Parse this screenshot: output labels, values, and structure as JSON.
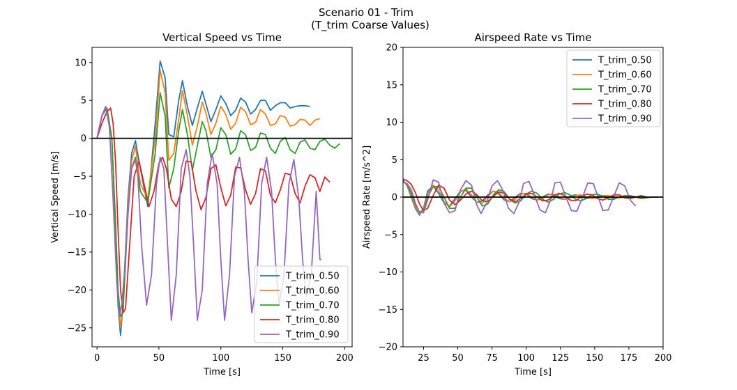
{
  "figure": {
    "suptitle_line1": "Scenario 01 - Trim",
    "suptitle_line2": "(T_trim Coarse Values)"
  },
  "colors": {
    "T_trim_0.50": "#1f77b4",
    "T_trim_0.60": "#ff7f0e",
    "T_trim_0.70": "#2ca02c",
    "T_trim_0.80": "#d62728",
    "T_trim_0.90": "#9467bd",
    "zero_line": "#000000"
  },
  "chart_data": [
    {
      "type": "line",
      "title": "Vertical Speed vs Time",
      "xlabel": "Time [s]",
      "ylabel": "Vertical Speed [m/s]",
      "xlim": [
        -4,
        206
      ],
      "ylim": [
        -27.5,
        12
      ],
      "xticks": [
        0,
        50,
        100,
        150,
        200
      ],
      "yticks": [
        10,
        5,
        0,
        -5,
        -10,
        -15,
        -20,
        -25
      ],
      "hline": 0,
      "legend_position": "lower-right",
      "series": [
        {
          "name": "T_trim_0.50",
          "x": [
            0,
            4,
            8,
            12,
            15,
            17,
            19,
            21,
            25,
            28,
            31,
            35,
            41,
            47,
            51,
            55,
            58,
            62,
            66,
            69,
            73,
            77,
            81,
            85,
            88,
            92,
            96,
            100,
            104,
            108,
            112,
            116,
            120,
            124,
            128,
            132,
            136,
            140,
            144,
            148,
            152,
            156,
            160,
            164,
            168,
            172
          ],
          "y": [
            0,
            3,
            4,
            0,
            -12,
            -22,
            -26,
            -22,
            -8,
            -2,
            -0.3,
            -4,
            -9,
            2,
            10.2,
            8,
            0.5,
            0.2,
            5,
            7.6,
            4.2,
            1.7,
            4,
            6.2,
            4.5,
            2.2,
            3.8,
            5.6,
            4.6,
            3,
            3.7,
            5.3,
            4.8,
            3.2,
            3.8,
            5,
            5,
            3.7,
            4.3,
            4.7,
            4.7,
            4,
            4.2,
            4.3,
            4.3,
            4.2
          ]
        },
        {
          "name": "T_trim_0.60",
          "x": [
            0,
            4,
            8,
            12,
            15,
            17,
            19,
            21,
            25,
            28,
            31,
            35,
            41,
            47,
            51,
            55,
            58,
            62,
            66,
            69,
            73,
            77,
            81,
            85,
            88,
            92,
            96,
            100,
            104,
            108,
            112,
            116,
            120,
            124,
            128,
            132,
            136,
            140,
            144,
            148,
            152,
            156,
            160,
            164,
            168,
            172,
            176,
            180
          ],
          "y": [
            0,
            3,
            4,
            0,
            -12,
            -21,
            -25,
            -22,
            -9,
            -3,
            -1,
            -6,
            -8,
            0,
            9,
            6,
            -2.9,
            -2,
            2.5,
            6.3,
            3,
            -0.9,
            1.6,
            4.8,
            3.3,
            0.5,
            2,
            4.2,
            3.2,
            1.2,
            2,
            4.1,
            3.5,
            1.8,
            2.1,
            3.8,
            3.2,
            1.7,
            1.9,
            3,
            2.8,
            1.6,
            1.8,
            2.5,
            2.4,
            1.7,
            2.4,
            2.6
          ]
        },
        {
          "name": "T_trim_0.70",
          "x": [
            0,
            4,
            8,
            12,
            15,
            17,
            19,
            21,
            25,
            28,
            31,
            35,
            41,
            47,
            51,
            55,
            58,
            62,
            66,
            69,
            73,
            77,
            81,
            85,
            88,
            92,
            96,
            100,
            104,
            108,
            112,
            116,
            120,
            124,
            128,
            132,
            136,
            140,
            144,
            148,
            152,
            156,
            160,
            164,
            168,
            172,
            176,
            180,
            184,
            188,
            192,
            196
          ],
          "y": [
            0,
            3,
            4,
            0,
            -11,
            -20,
            -23.5,
            -23,
            -10,
            -4,
            -2.5,
            -7,
            -8.5,
            -2,
            6,
            3,
            -6.5,
            -4,
            1,
            3.8,
            0.5,
            -4.2,
            -1,
            2.2,
            1,
            -2.5,
            -1.5,
            1.4,
            0.5,
            -2.1,
            -1.4,
            1,
            0.5,
            -1.6,
            -1.2,
            0.7,
            0.5,
            -1.3,
            -2,
            -0.4,
            0.1,
            -1.5,
            -2,
            -0.5,
            -0.2,
            -1.3,
            -1.5,
            -0.4,
            -0.1,
            -0.9,
            -1.3,
            -0.7
          ]
        },
        {
          "name": "T_trim_0.80",
          "x": [
            0,
            4,
            8,
            11,
            13,
            15,
            17,
            19,
            21,
            23,
            26,
            30,
            34,
            38,
            42,
            46,
            50,
            53,
            56,
            60,
            64,
            68,
            72,
            76,
            80,
            84,
            88,
            92,
            96,
            100,
            104,
            108,
            112,
            116,
            120,
            124,
            128,
            132,
            136,
            140,
            144,
            148,
            152,
            156,
            160,
            164,
            168,
            172,
            176,
            180,
            184,
            188
          ],
          "y": [
            0,
            2,
            3.5,
            4,
            2,
            -3,
            -12,
            -20,
            -23,
            -22.5,
            -15,
            -5,
            -3,
            -6,
            -9,
            -7,
            -3.3,
            -2.5,
            -4,
            -8,
            -9,
            -7,
            -3,
            -3.1,
            -7,
            -9.4,
            -7.8,
            -4,
            -3.5,
            -6.5,
            -8.9,
            -7.5,
            -3.8,
            -3.9,
            -6.8,
            -8.7,
            -7.3,
            -4,
            -4.3,
            -7.5,
            -8.5,
            -6.8,
            -4.6,
            -4.8,
            -7.3,
            -8.5,
            -6.3,
            -4.8,
            -5.2,
            -7,
            -5.1,
            -5.8
          ]
        },
        {
          "name": "T_trim_0.90",
          "x": [
            0,
            4,
            7,
            10,
            13,
            16,
            18,
            20,
            22,
            25,
            28,
            31,
            33,
            36,
            40,
            44,
            48,
            51,
            54,
            57,
            60,
            64,
            68,
            72,
            75,
            78,
            81,
            85,
            89,
            93,
            97,
            100,
            103,
            107,
            111,
            115,
            119,
            122,
            125,
            129,
            133,
            137,
            141,
            144,
            147,
            151,
            155,
            159,
            163,
            166,
            169,
            173,
            177,
            180,
            181
          ],
          "y": [
            0,
            3,
            4.2,
            1.5,
            -8,
            -19,
            -23.5,
            -22,
            -18,
            -10,
            -4,
            -2.8,
            -5,
            -14,
            -22,
            -18,
            -6,
            -2.5,
            -4,
            -14,
            -24,
            -18,
            -4,
            -1.5,
            -5,
            -14,
            -24,
            -20,
            -6,
            -2,
            -6,
            -16,
            -24,
            -18,
            -5,
            -2.5,
            -7,
            -16,
            -23,
            -19,
            -6,
            -2.5,
            -7,
            -16,
            -22,
            -18,
            -6,
            -2.8,
            -8,
            -16,
            -21,
            -18,
            -7,
            -16,
            -16
          ]
        }
      ]
    },
    {
      "type": "line",
      "title": "Airspeed Rate vs Time",
      "xlabel": "Time [s]",
      "ylabel": "Airspeed Rate [m/s^2]",
      "xlim": [
        10,
        200
      ],
      "ylim": [
        -20,
        20
      ],
      "xticks": [
        25,
        50,
        75,
        100,
        125,
        150,
        175,
        200
      ],
      "yticks": [
        20,
        15,
        10,
        5,
        0,
        -5,
        -10,
        -15,
        -20
      ],
      "hline": 0,
      "legend_position": "upper-right",
      "series": [
        {
          "name": "T_trim_0.50",
          "x": [
            10,
            13,
            16,
            19,
            22,
            25,
            28,
            32,
            36,
            40,
            44,
            48,
            52,
            56,
            60,
            64,
            68,
            72,
            76,
            80,
            84,
            88,
            92,
            96,
            100,
            104,
            108,
            112,
            116,
            120,
            124,
            128,
            132,
            136,
            140,
            144,
            148,
            152,
            156,
            160,
            164,
            168,
            172
          ],
          "y": [
            2.3,
            1.5,
            0,
            -1.5,
            -2.4,
            -1.5,
            0.8,
            1.5,
            0.5,
            -0.8,
            -1.2,
            -0.2,
            0.8,
            0.9,
            0,
            -0.7,
            -0.5,
            0.3,
            0.8,
            0.4,
            -0.4,
            -0.6,
            0,
            0.5,
            0.4,
            -0.2,
            -0.4,
            0,
            0.4,
            0.3,
            -0.2,
            -0.3,
            0.1,
            0.3,
            0.1,
            -0.2,
            -0.1,
            0.1,
            0.2,
            0,
            -0.1,
            0,
            0.1
          ]
        },
        {
          "name": "T_trim_0.60",
          "x": [
            10,
            13,
            16,
            19,
            22,
            25,
            28,
            32,
            36,
            40,
            44,
            48,
            52,
            56,
            60,
            64,
            68,
            72,
            76,
            80,
            84,
            88,
            92,
            96,
            100,
            104,
            108,
            112,
            116,
            120,
            124,
            128,
            132,
            136,
            140,
            144,
            148,
            152,
            156,
            160,
            164,
            168,
            172,
            176,
            180
          ],
          "y": [
            2.2,
            1.6,
            0.2,
            -1.3,
            -2.2,
            -1.6,
            0.4,
            1.6,
            0.9,
            -0.6,
            -1.3,
            -0.5,
            0.7,
            1.1,
            0.3,
            -0.7,
            -0.8,
            0.1,
            0.8,
            0.6,
            -0.2,
            -0.6,
            -0.3,
            0.4,
            0.5,
            0,
            -0.4,
            -0.2,
            0.3,
            0.4,
            0,
            -0.3,
            -0.1,
            0.2,
            0.3,
            0,
            -0.2,
            -0.1,
            0.2,
            0.2,
            0,
            -0.1,
            0,
            0.1,
            0.1
          ]
        },
        {
          "name": "T_trim_0.70",
          "x": [
            10,
            13,
            16,
            19,
            22,
            25,
            28,
            32,
            36,
            40,
            44,
            48,
            52,
            56,
            60,
            64,
            68,
            72,
            76,
            80,
            84,
            88,
            92,
            96,
            100,
            104,
            108,
            112,
            116,
            120,
            124,
            128,
            132,
            136,
            140,
            144,
            148,
            152,
            156,
            160,
            164,
            168,
            172,
            176,
            180,
            184,
            188,
            192,
            196
          ],
          "y": [
            2.1,
            1.7,
            0.5,
            -1,
            -2,
            -1.8,
            0,
            1.4,
            1.4,
            0,
            -1.5,
            -1.5,
            0,
            1.2,
            1.2,
            0,
            -1.2,
            -0.9,
            0.3,
            1,
            0.7,
            -0.3,
            -0.8,
            -0.5,
            0.4,
            0.8,
            0.5,
            -0.3,
            -0.7,
            -0.3,
            0.4,
            0.6,
            0.3,
            -0.3,
            -0.5,
            -0.2,
            0.3,
            0.4,
            0.1,
            -0.3,
            -0.3,
            0,
            0.2,
            0.2,
            0,
            -0.2,
            -0.1,
            0,
            0
          ]
        },
        {
          "name": "T_trim_0.80",
          "x": [
            10,
            13,
            16,
            19,
            22,
            25,
            28,
            32,
            36,
            40,
            44,
            48,
            52,
            56,
            60,
            64,
            68,
            72,
            76,
            80,
            84,
            88,
            92,
            96,
            100,
            104,
            108,
            112,
            116,
            120,
            124,
            128,
            132,
            136,
            140,
            144,
            148,
            152,
            156,
            160,
            164,
            168,
            172,
            176,
            180,
            184,
            188
          ],
          "y": [
            2.4,
            2.2,
            1.7,
            0.6,
            -0.9,
            -1.8,
            -1.5,
            0.2,
            1.6,
            1.2,
            -0.4,
            -1,
            -0.4,
            0.4,
            0.8,
            0.3,
            -0.5,
            -0.6,
            0.1,
            0.7,
            0.5,
            -0.3,
            -0.6,
            -0.2,
            0.4,
            0.5,
            0,
            -0.5,
            -0.4,
            0.2,
            0.5,
            0.2,
            -0.4,
            -0.5,
            0,
            0.4,
            0.3,
            -0.2,
            -0.4,
            -0.1,
            0.3,
            0.3,
            -0.1,
            -0.2,
            0,
            0.2,
            0
          ]
        },
        {
          "name": "T_trim_0.90",
          "x": [
            10,
            13,
            16,
            19,
            22,
            25,
            28,
            32,
            36,
            40,
            44,
            48,
            52,
            56,
            60,
            64,
            67,
            71,
            75,
            79,
            83,
            87,
            91,
            95,
            98,
            102,
            106,
            110,
            114,
            118,
            121,
            125,
            129,
            133,
            137,
            141,
            145,
            149,
            153,
            156,
            160,
            164,
            168,
            172,
            176,
            180
          ],
          "y": [
            2,
            1.8,
            1,
            -0.8,
            -2,
            -2.1,
            -0.4,
            2.3,
            2,
            -0.8,
            -2.1,
            -1.8,
            1,
            2.2,
            1.6,
            -1.1,
            -2.2,
            -0.8,
            1.5,
            2.2,
            0.9,
            -1.5,
            -2.2,
            -0.6,
            1.8,
            2.1,
            0.3,
            -1.7,
            -2.1,
            -0.3,
            1.9,
            2,
            0,
            -1.8,
            -1.9,
            -0.1,
            1.9,
            1.8,
            -0.2,
            -1.8,
            -1.7,
            0.1,
            1.9,
            1.5,
            -0.4,
            -1.2
          ]
        }
      ]
    }
  ]
}
